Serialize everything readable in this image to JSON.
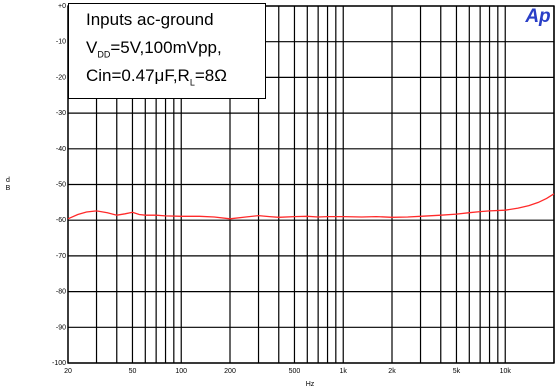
{
  "chart_data": {
    "type": "line",
    "title": "",
    "xlabel": "Hz",
    "ylabel": "d\nB",
    "xscale": "log",
    "xlim": [
      20,
      20000
    ],
    "ylim": [
      -100,
      0
    ],
    "grid": true,
    "x_ticks": [
      20,
      50,
      100,
      200,
      500,
      1000,
      2000,
      5000,
      10000
    ],
    "x_tick_labels": [
      "20",
      "50",
      "100",
      "200",
      "500",
      "1k",
      "2k",
      "5k",
      "10k"
    ],
    "y_ticks": [
      0,
      -10,
      -20,
      -30,
      -40,
      -50,
      -60,
      -70,
      -80,
      -90,
      -100
    ],
    "y_tick_labels": [
      "+0",
      "-10",
      "-20",
      "-30",
      "-40",
      "-50",
      "-60",
      "-70",
      "-80",
      "-90",
      "-100"
    ],
    "series": [
      {
        "color": "#ff2a2a",
        "x": [
          20,
          23,
          26,
          30,
          35,
          40,
          45,
          50,
          55,
          60,
          70,
          80,
          100,
          130,
          160,
          200,
          250,
          300,
          350,
          400,
          500,
          600,
          700,
          800,
          1000,
          1300,
          1600,
          2000,
          2500,
          3000,
          4000,
          5000,
          6000,
          7000,
          8000,
          10000,
          12000,
          14000,
          16000,
          18000,
          20000
        ],
        "y": [
          -59.6,
          -58.4,
          -57.7,
          -57.4,
          -57.9,
          -58.6,
          -58.2,
          -57.8,
          -58.4,
          -58.6,
          -58.6,
          -58.8,
          -58.9,
          -58.9,
          -59.1,
          -59.6,
          -59.1,
          -58.7,
          -59.0,
          -59.2,
          -59.0,
          -58.9,
          -59.1,
          -59.0,
          -59.0,
          -59.1,
          -59.0,
          -59.2,
          -59.1,
          -58.9,
          -58.6,
          -58.3,
          -57.9,
          -57.6,
          -57.4,
          -57.2,
          -56.6,
          -55.9,
          -55.0,
          -53.9,
          -52.6
        ]
      }
    ],
    "annotation": {
      "line1": "Inputs ac-ground",
      "line2_prefix": "V",
      "line2_sub": "DD",
      "line2_rest": "=5V,100mVpp,",
      "line3_prefix": "Cin=0.47μF,R",
      "line3_sub": "L",
      "line3_rest": "=8Ω"
    },
    "logo_text": "Ap",
    "logo_color": "#2a3fc7"
  }
}
